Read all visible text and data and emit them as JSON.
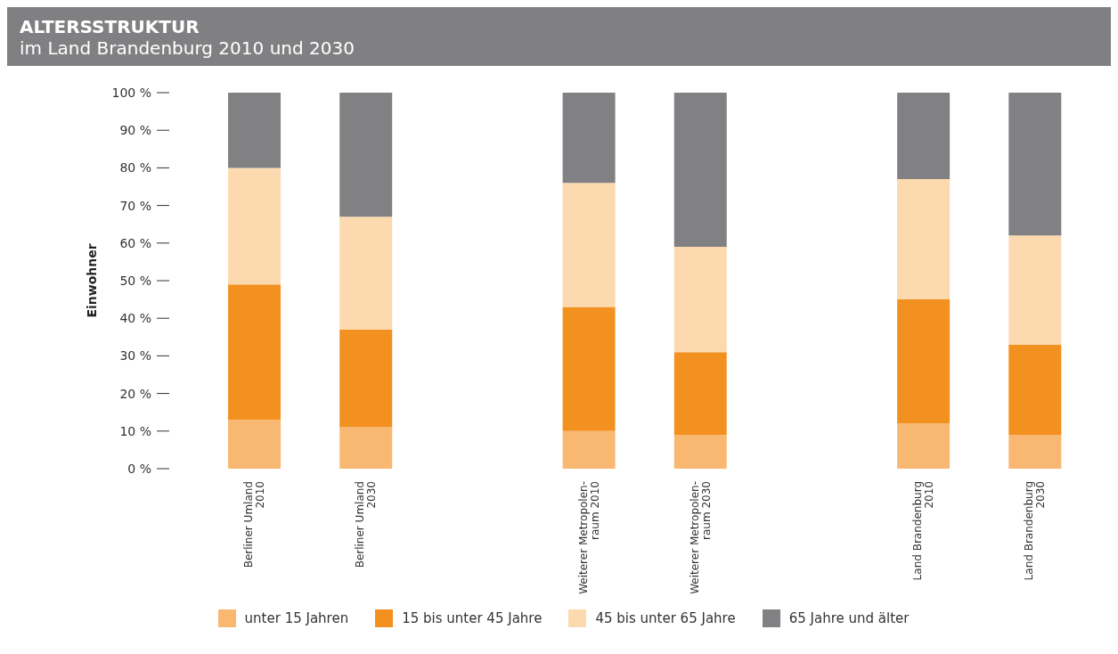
{
  "chart_data": {
    "type": "bar",
    "stacked": true,
    "title": "ALTERSSTRUKTUR",
    "subtitle": "im Land Brandenburg 2010 und 2030",
    "ylabel": "Einwohner",
    "categories": [
      "Berliner Umland\n2010",
      "Berliner Umland\n2030",
      "Weiterer Metropolen-\nraum 2010",
      "Weiterer Metropolen-\nraum 2030",
      "Land Brandenburg\n2010",
      "Land Brandenburg\n2030"
    ],
    "series": [
      {
        "name": "unter 15 Jahren",
        "color": "#f9b872",
        "values": [
          13,
          11,
          10,
          9,
          12,
          9
        ]
      },
      {
        "name": "15 bis unter 45 Jahre",
        "color": "#f29120",
        "values": [
          36,
          26,
          33,
          22,
          33,
          24
        ]
      },
      {
        "name": "45 bis unter 65 Jahre",
        "color": "#fcd9ae",
        "values": [
          31,
          30,
          33,
          28,
          32,
          29
        ]
      },
      {
        "name": "65 Jahre und älter",
        "color": "#818184",
        "values": [
          20,
          33,
          24,
          41,
          23,
          38
        ]
      }
    ],
    "ylim": [
      0,
      100
    ],
    "yticks": [
      {
        "value": 0,
        "label": "0 %"
      },
      {
        "value": 10,
        "label": "10 %"
      },
      {
        "value": 20,
        "label": "20 %"
      },
      {
        "value": 30,
        "label": "30 %"
      },
      {
        "value": 40,
        "label": "40 %"
      },
      {
        "value": 50,
        "label": "50 %"
      },
      {
        "value": 60,
        "label": "60 %"
      },
      {
        "value": 70,
        "label": "70 %"
      },
      {
        "value": 80,
        "label": "80 %"
      },
      {
        "value": 90,
        "label": "90 %"
      },
      {
        "value": 100,
        "label": "100 %"
      }
    ],
    "grid": false,
    "legend": "bottom"
  }
}
